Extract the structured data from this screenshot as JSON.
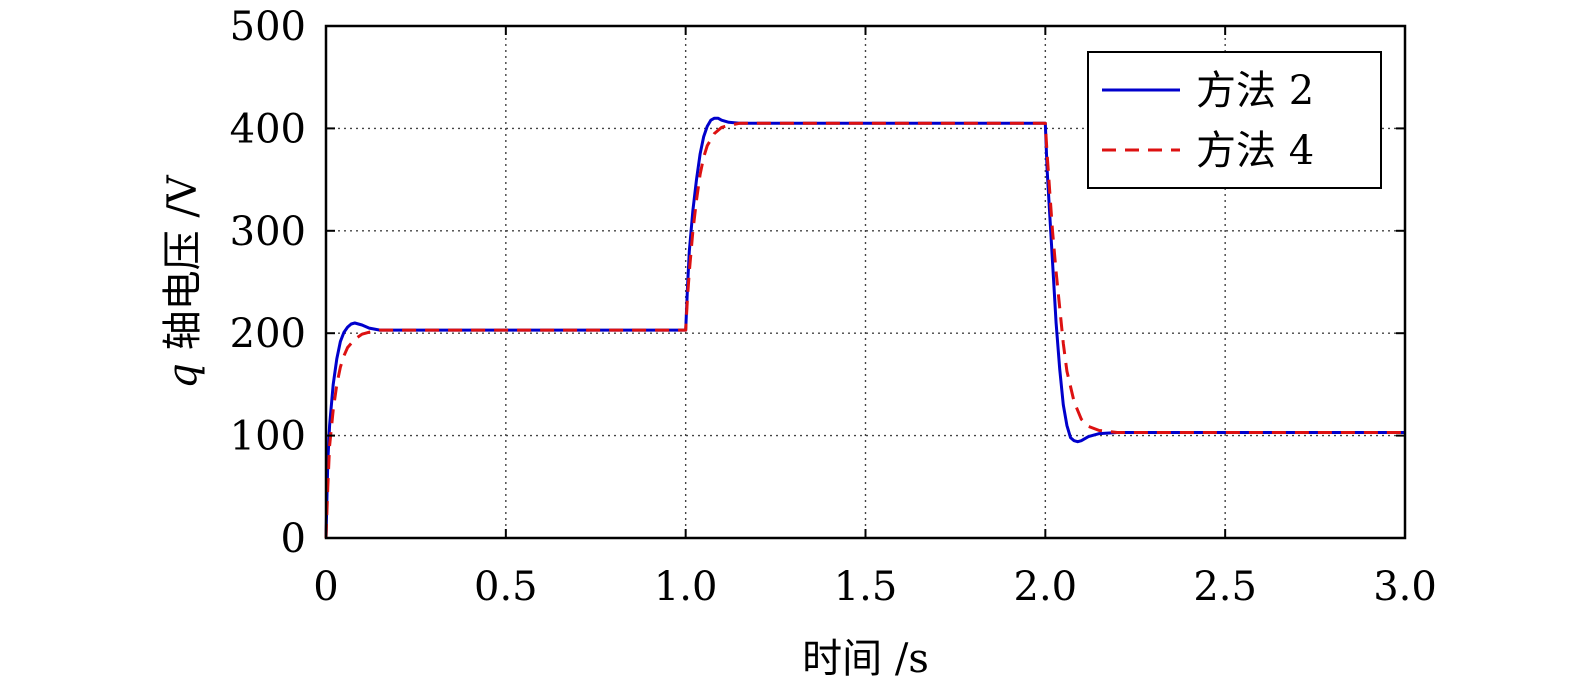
{
  "chart_data": {
    "type": "line",
    "title": "",
    "xlabel": "时间 /s",
    "ylabel_var": "q",
    "ylabel_rest": " 轴电压 /V",
    "xlim": [
      0,
      3.0
    ],
    "ylim": [
      0,
      500
    ],
    "xticks": [
      "0",
      "0.5",
      "1.0",
      "1.5",
      "2.0",
      "2.5",
      "3.0"
    ],
    "yticks": [
      "0",
      "100",
      "200",
      "300",
      "400",
      "500"
    ],
    "grid": true,
    "legend_position": "top-right",
    "series": [
      {
        "name": "方法 2",
        "color": "#0000cc",
        "style": "solid",
        "x": [
          0,
          0.005,
          0.01,
          0.02,
          0.03,
          0.04,
          0.05,
          0.06,
          0.07,
          0.08,
          0.09,
          0.1,
          0.12,
          0.15,
          0.2,
          0.5,
          1.0,
          1.005,
          1.01,
          1.02,
          1.03,
          1.04,
          1.05,
          1.06,
          1.07,
          1.08,
          1.09,
          1.1,
          1.12,
          1.15,
          1.2,
          1.5,
          2.0,
          2.005,
          2.01,
          2.02,
          2.03,
          2.04,
          2.05,
          2.06,
          2.07,
          2.08,
          2.09,
          2.1,
          2.12,
          2.15,
          2.2,
          2.5,
          3.0
        ],
        "y": [
          0,
          75,
          110,
          150,
          175,
          192,
          201,
          206,
          209,
          210,
          209,
          208,
          205,
          203,
          203,
          203,
          203,
          245,
          280,
          320,
          350,
          375,
          392,
          402,
          408,
          410,
          410,
          408,
          406,
          405,
          405,
          405,
          405,
          360,
          330,
          270,
          210,
          165,
          130,
          110,
          98,
          95,
          94,
          95,
          99,
          102,
          103,
          103,
          103
        ]
      },
      {
        "name": "方法 4",
        "color": "#dd1111",
        "style": "dashed",
        "x": [
          0,
          0.005,
          0.01,
          0.02,
          0.03,
          0.04,
          0.05,
          0.06,
          0.08,
          0.1,
          0.12,
          0.15,
          0.2,
          0.5,
          1.0,
          1.005,
          1.01,
          1.02,
          1.03,
          1.04,
          1.05,
          1.06,
          1.08,
          1.1,
          1.12,
          1.15,
          1.2,
          1.5,
          2.0,
          2.005,
          2.01,
          2.02,
          2.03,
          2.04,
          2.05,
          2.06,
          2.08,
          2.1,
          2.12,
          2.15,
          2.2,
          2.5,
          3.0
        ],
        "y": [
          0,
          50,
          90,
          125,
          150,
          167,
          178,
          186,
          194,
          199,
          201,
          203,
          203,
          203,
          203,
          235,
          260,
          300,
          330,
          355,
          372,
          383,
          395,
          401,
          403,
          405,
          405,
          405,
          405,
          375,
          350,
          300,
          260,
          225,
          190,
          163,
          133,
          116,
          109,
          105,
          103,
          103,
          103
        ]
      }
    ]
  }
}
